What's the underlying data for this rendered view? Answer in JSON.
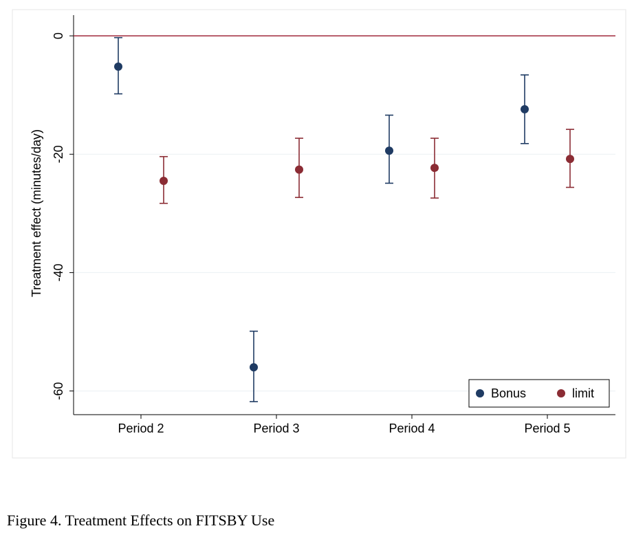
{
  "caption": "Figure 4. Treatment Effects on FITSBY Use",
  "chart_data": {
    "type": "scatter",
    "title": "",
    "xlabel": "",
    "ylabel": "Treatment effect (minutes/day)",
    "categories": [
      "Period 2",
      "Period 3",
      "Period 4",
      "Period 5"
    ],
    "ylim": [
      -64,
      3.5
    ],
    "yticks": [
      0,
      -20,
      -40,
      -60
    ],
    "ytick_labels": [
      "0",
      "-20",
      "-40",
      "-60"
    ],
    "reference_line": {
      "y": 0,
      "color": "#a0283a"
    },
    "grid": true,
    "legend_position": "bottom-right",
    "series": [
      {
        "name": "Bonus",
        "color": "#1f3b63",
        "values": [
          -5.2,
          -56,
          -19.4,
          -12.4
        ],
        "ci_low": [
          -9.8,
          -61.8,
          -24.9,
          -18.2
        ],
        "ci_high": [
          -0.3,
          -49.9,
          -13.4,
          -6.6
        ]
      },
      {
        "name": "limit",
        "color": "#8b2c34",
        "values": [
          -24.5,
          -22.6,
          -22.3,
          -20.8
        ],
        "ci_low": [
          -28.3,
          -27.3,
          -27.4,
          -25.6
        ],
        "ci_high": [
          -20.4,
          -17.3,
          -17.3,
          -15.8
        ]
      }
    ]
  }
}
